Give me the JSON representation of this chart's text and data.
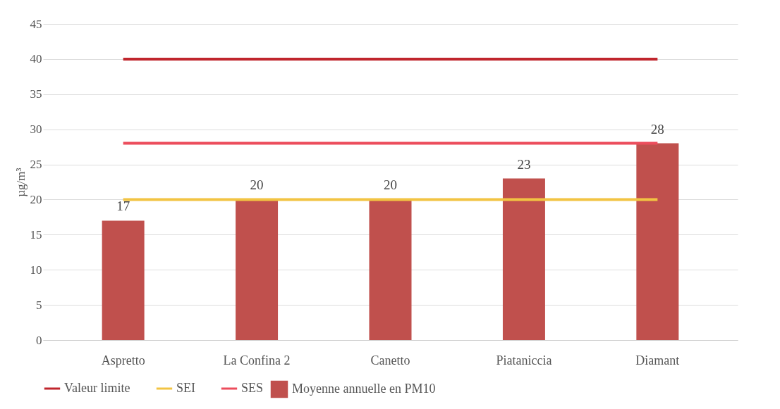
{
  "chart_data": {
    "type": "bar",
    "ylabel": "µg/m³",
    "categories": [
      "Aspretto",
      "La Confina 2",
      "Canetto",
      "Piataniccia",
      "Diamant"
    ],
    "series": [
      {
        "name": "Moyenne annuelle en PM10",
        "color": "#c0504d",
        "values": [
          17,
          20,
          20,
          23,
          28
        ],
        "value_labels": [
          "17",
          "20",
          "20",
          "23",
          "28"
        ]
      },
      {
        "name": "Valeur limite",
        "type": "line",
        "color": "#c0262d",
        "values": [
          40,
          40,
          40,
          40,
          40
        ]
      },
      {
        "name": "SEI",
        "type": "line",
        "color": "#f2c443",
        "values": [
          20,
          20,
          20,
          20,
          20
        ]
      },
      {
        "name": "SES",
        "type": "line",
        "color": "#ec4d5c",
        "values": [
          28,
          28,
          28,
          28,
          28
        ]
      }
    ],
    "ylim": [
      0,
      45
    ],
    "yticks": [
      0,
      5,
      10,
      15,
      20,
      25,
      30,
      35,
      40,
      45
    ],
    "grid": "y",
    "legend": "bottom"
  }
}
